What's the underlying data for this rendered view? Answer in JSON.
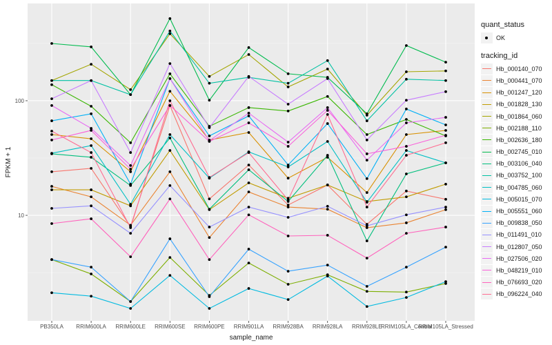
{
  "chart_data": {
    "type": "line",
    "xlabel": "sample_name",
    "ylabel": "FPKM + 1",
    "y_scale": "log10",
    "ylim": [
      1.2,
      706
    ],
    "y_ticks": [
      10,
      100
    ],
    "y_tick_labels": [
      "10",
      "100"
    ],
    "grid": true,
    "legend_position": "right",
    "categories": [
      "PB350LA",
      "RRIM600LA",
      "RRIM600LE",
      "RRIM600SE",
      "RRIM600PE",
      "RRIM901LA",
      "RRIM928BA",
      "RRIM928LA",
      "RRIM928LE",
      "RRIM105LA_Control",
      "RRIM105LA_Stressed"
    ],
    "point_legend": {
      "title": "quant_status",
      "entries": [
        "OK"
      ]
    },
    "line_legend_title": "tracking_id",
    "series": [
      {
        "name": "Hb_000140_070",
        "color": "#F8766D",
        "values": [
          24.0,
          25.7,
          8.0,
          90.8,
          13.9,
          27.5,
          12.3,
          18.4,
          8.35,
          16.3,
          13.8
        ]
      },
      {
        "name": "Hb_000441_070",
        "color": "#EA8331",
        "values": [
          17.9,
          14.5,
          8.2,
          24.0,
          6.4,
          16.0,
          11.8,
          11.3,
          7.8,
          8.6,
          11.2
        ]
      },
      {
        "name": "Hb_001247_120",
        "color": "#D89000",
        "values": [
          50.7,
          46.6,
          24.0,
          121,
          45.4,
          52.8,
          21.1,
          32.1,
          15.8,
          50.7,
          55.1
        ]
      },
      {
        "name": "Hb_001828_130",
        "color": "#C09B00",
        "values": [
          16.7,
          16.7,
          12.1,
          36.8,
          11.2,
          19.2,
          14.1,
          18.4,
          13.2,
          14.5,
          18.7
        ]
      },
      {
        "name": "Hb_001864_060",
        "color": "#A3A500",
        "values": [
          150,
          208,
          125,
          384,
          163,
          253,
          132,
          189,
          74.7,
          179,
          182
        ]
      },
      {
        "name": "Hb_002188_110",
        "color": "#7CAE00",
        "values": [
          4.11,
          3.08,
          1.77,
          4.29,
          2.0,
          3.84,
          2.5,
          3.03,
          2.17,
          2.14,
          2.54
        ]
      },
      {
        "name": "Hb_002636_180",
        "color": "#39B600",
        "values": [
          138,
          89.5,
          43.0,
          172,
          59.8,
          87.1,
          81.3,
          109,
          50.7,
          68.7,
          49.3
        ]
      },
      {
        "name": "Hb_002745_010",
        "color": "#00BB4E",
        "values": [
          316,
          295,
          113,
          521,
          101,
          291,
          172,
          160,
          76.9,
          303,
          217
        ]
      },
      {
        "name": "Hb_003106_040",
        "color": "#00BF7D",
        "values": [
          34.4,
          32.1,
          18.2,
          47.3,
          11.3,
          25.0,
          13.2,
          33.4,
          5.98,
          23.0,
          28.7
        ]
      },
      {
        "name": "Hb_003752_100",
        "color": "#00C1A3",
        "values": [
          150,
          150,
          113,
          406,
          142,
          160,
          142,
          224,
          66.8,
          154,
          150
        ]
      },
      {
        "name": "Hb_004785_060",
        "color": "#00BFC4",
        "values": [
          34.8,
          40.6,
          12.5,
          50.7,
          21.1,
          35.8,
          26.4,
          44.1,
          13.0,
          36.8,
          28.7
        ]
      },
      {
        "name": "Hb_005015_070",
        "color": "#00BAE0",
        "values": [
          2.11,
          1.97,
          1.54,
          2.99,
          1.54,
          2.3,
          1.84,
          2.95,
          1.6,
          1.92,
          2.64
        ]
      },
      {
        "name": "Hb_005551_060",
        "color": "#00B0F6",
        "values": [
          66.8,
          76.9,
          18.7,
          156,
          49.3,
          73.7,
          27.5,
          63.2,
          20.9,
          84.7,
          61.5
        ]
      },
      {
        "name": "Hb_009838_050",
        "color": "#35A2FF",
        "values": [
          4.11,
          3.53,
          1.77,
          6.24,
          1.95,
          5.07,
          3.25,
          3.68,
          2.4,
          3.53,
          5.28
        ]
      },
      {
        "name": "Hb_011491_010",
        "color": "#9590FF",
        "values": [
          11.5,
          12.1,
          6.97,
          18.2,
          7.9,
          11.8,
          9.6,
          12.0,
          8.1,
          10.1,
          11.8
        ]
      },
      {
        "name": "Hb_012807_050",
        "color": "#C77CFF",
        "values": [
          104,
          150,
          35.3,
          211,
          58.2,
          163,
          93.3,
          156,
          45.4,
          101,
          120
        ]
      },
      {
        "name": "Hb_027506_020",
        "color": "#E76BF3",
        "values": [
          90.8,
          57.4,
          27.2,
          156,
          44.8,
          78.0,
          43.5,
          87.1,
          30.3,
          64.1,
          71.6
        ]
      },
      {
        "name": "Hb_048219_010",
        "color": "#FA62DB",
        "values": [
          45.4,
          55.1,
          25.3,
          90.8,
          44.1,
          64.1,
          40.0,
          82.4,
          34.4,
          40.0,
          50.0
        ]
      },
      {
        "name": "Hb_076693_020",
        "color": "#FF62BC",
        "values": [
          8.47,
          9.33,
          4.35,
          13.9,
          4.11,
          10.1,
          6.6,
          6.7,
          4.23,
          6.97,
          7.9
        ]
      },
      {
        "name": "Hb_096224_040",
        "color": "#FF6C91",
        "values": [
          54.3,
          35.3,
          7.8,
          100,
          21.4,
          35.3,
          13.6,
          75.9,
          11.8,
          33.4,
          43.0
        ]
      }
    ]
  }
}
